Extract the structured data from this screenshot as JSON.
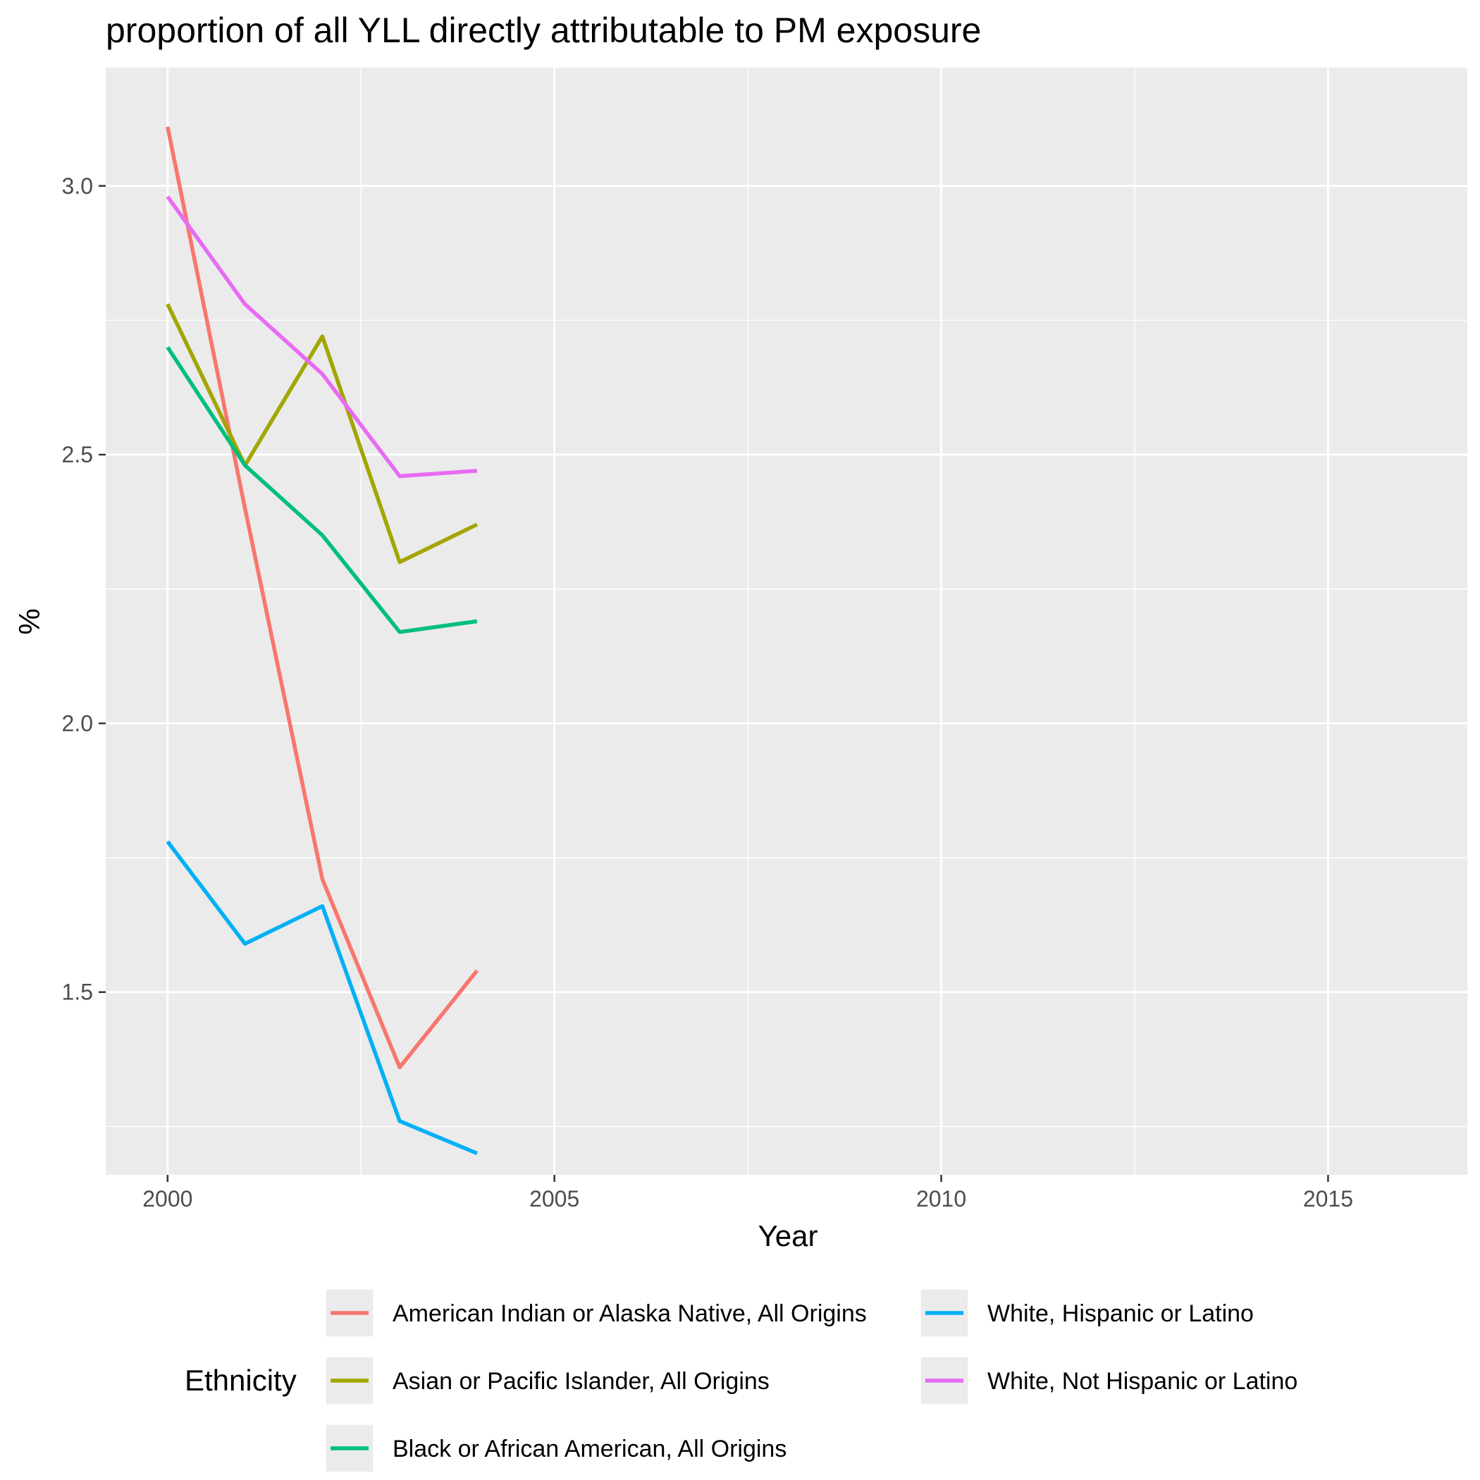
{
  "chart_data": {
    "type": "line",
    "title": "proportion of all YLL directly attributable to PM exposure",
    "xlabel": "Year",
    "ylabel": "%",
    "x_ticks": [
      2000,
      2005,
      2010,
      2015
    ],
    "x_tick_labels": [
      "2000",
      "2005",
      "2010",
      "2015"
    ],
    "y_ticks": [
      1.5,
      2.0,
      2.5,
      3.0
    ],
    "y_tick_labels": [
      "1.5",
      "2.0",
      "2.5",
      "3.0"
    ],
    "xlim": [
      1999.2,
      2016.8
    ],
    "ylim": [
      1.16,
      3.22
    ],
    "grid": true,
    "legend_title": "Ethnicity",
    "legend_position": "bottom",
    "series": [
      {
        "name": "American Indian or Alaska Native, All Origins",
        "color": "#F8766D",
        "x": [
          2000,
          2001,
          2002,
          2003,
          2004
        ],
        "values": [
          3.11,
          2.4,
          1.71,
          1.36,
          1.54
        ]
      },
      {
        "name": "Asian or Pacific Islander, All Origins",
        "color": "#A3A500",
        "x": [
          2000,
          2001,
          2002,
          2003,
          2004
        ],
        "values": [
          2.78,
          2.48,
          2.72,
          2.3,
          2.37
        ]
      },
      {
        "name": "Black or African American, All Origins",
        "color": "#00BF7D",
        "x": [
          2000,
          2001,
          2002,
          2003,
          2004
        ],
        "values": [
          2.7,
          2.48,
          2.35,
          2.17,
          2.19
        ]
      },
      {
        "name": "White, Hispanic or Latino",
        "color": "#00B0F6",
        "x": [
          2000,
          2001,
          2002,
          2003,
          2004
        ],
        "values": [
          1.78,
          1.59,
          1.66,
          1.26,
          1.2
        ]
      },
      {
        "name": "White, Not Hispanic or Latino",
        "color": "#E76BF3",
        "x": [
          2000,
          2001,
          2002,
          2003,
          2004
        ],
        "values": [
          2.98,
          2.78,
          2.65,
          2.46,
          2.47
        ]
      }
    ],
    "legend_order": [
      "American Indian or Alaska Native, All Origins",
      "Asian or Pacific Islander, All Origins",
      "Black or African American, All Origins",
      "White, Hispanic or Latino",
      "White, Not Hispanic or Latino"
    ]
  }
}
